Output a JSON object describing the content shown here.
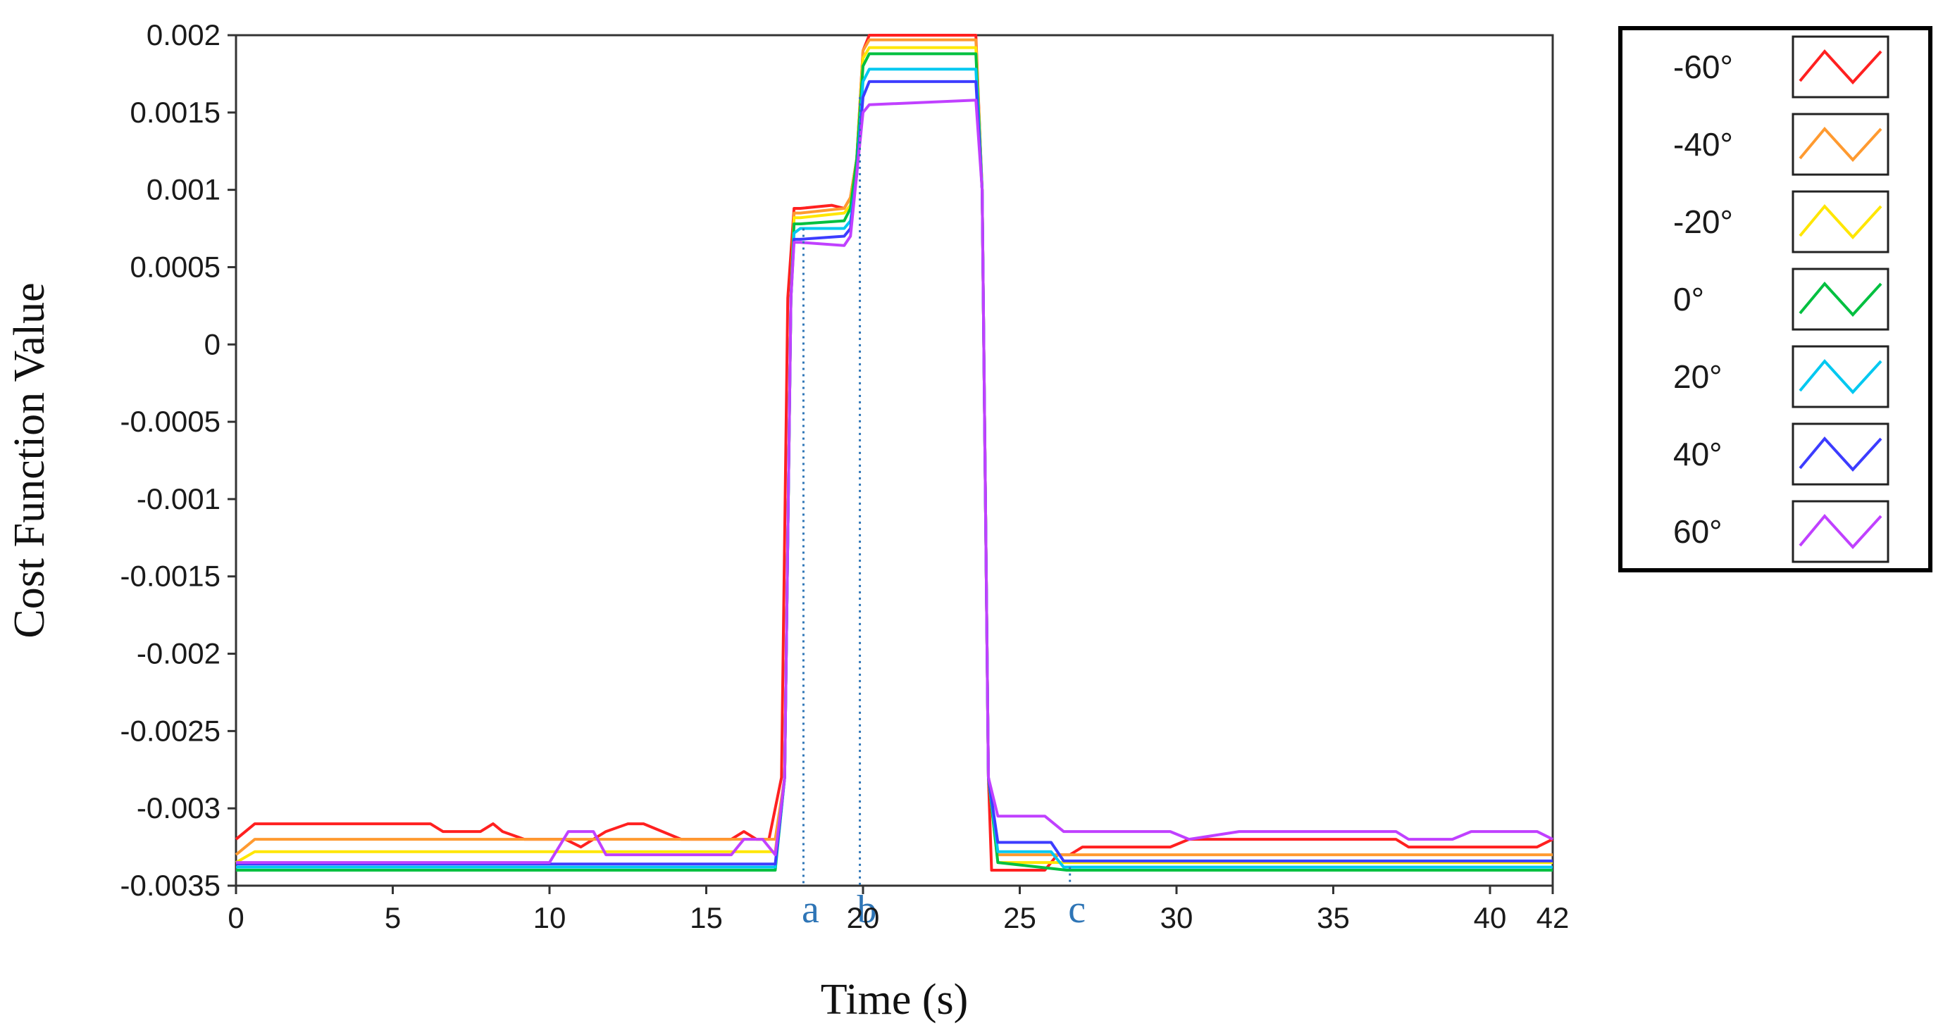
{
  "chart_data": {
    "type": "line",
    "title": "",
    "xlabel": "Time (s)",
    "ylabel": "Cost Function Value",
    "xlim": [
      0,
      42
    ],
    "ylim": [
      -0.0035,
      0.002
    ],
    "xticks": [
      0,
      5,
      10,
      15,
      20,
      25,
      30,
      35,
      40,
      42
    ],
    "xtick_labels": [
      "0",
      "5",
      "10",
      "15",
      "20",
      "25",
      "30",
      "35",
      "40",
      "42"
    ],
    "yticks": [
      0.002,
      0.0015,
      0.001,
      0.0005,
      0,
      -0.0005,
      -0.001,
      -0.0015,
      -0.002,
      -0.0025,
      -0.003,
      -0.0035
    ],
    "ytick_labels": [
      "0.002",
      "0.0015",
      "0.001",
      "0.0005",
      "0",
      "-0.0005",
      "-0.001",
      "-0.0015",
      "-0.002",
      "-0.0025",
      "-0.003",
      "-0.0035"
    ],
    "grid": false,
    "legend_position": "outside-right-top",
    "markers": [
      {
        "label": "a",
        "x": 18.1
      },
      {
        "label": "b",
        "x": 19.9
      },
      {
        "label": "c",
        "x": 26.6
      }
    ],
    "marker_color": "#2e75b6",
    "series": [
      {
        "name": "-60°",
        "color": "#ff2020",
        "x": [
          0,
          0.6,
          6.2,
          6.6,
          7.8,
          8.2,
          8.5,
          9.2,
          10.5,
          11.0,
          11.8,
          12.5,
          13.0,
          13.6,
          14.2,
          15.8,
          16.2,
          16.6,
          17.0,
          17.4,
          17.6,
          17.8,
          18.0,
          19.0,
          19.4,
          19.6,
          19.8,
          20.0,
          20.2,
          20.3,
          23.6,
          23.8,
          24.0,
          24.1,
          24.3,
          24.6,
          25.8,
          26.2,
          26.6,
          27.0,
          29.8,
          30.4,
          32.0,
          37.0,
          37.4,
          38.8,
          39.4,
          41.5,
          42
        ],
        "y": [
          -0.0032,
          -0.0031,
          -0.0031,
          -0.00315,
          -0.00315,
          -0.0031,
          -0.00315,
          -0.0032,
          -0.0032,
          -0.00325,
          -0.00315,
          -0.0031,
          -0.0031,
          -0.00315,
          -0.0032,
          -0.0032,
          -0.00315,
          -0.0032,
          -0.0032,
          -0.0028,
          0.0003,
          0.00088,
          0.00088,
          0.0009,
          0.00088,
          0.00095,
          0.0012,
          0.0019,
          0.002,
          0.002,
          0.002,
          0.001,
          -0.0028,
          -0.0034,
          -0.0034,
          -0.0034,
          -0.0034,
          -0.0033,
          -0.0033,
          -0.00325,
          -0.00325,
          -0.0032,
          -0.0032,
          -0.0032,
          -0.00325,
          -0.00325,
          -0.00325,
          -0.00325,
          -0.0032
        ]
      },
      {
        "name": "-40°",
        "color": "#ff9a30",
        "x": [
          0,
          0.6,
          17.2,
          17.5,
          17.7,
          17.8,
          18.0,
          19.4,
          19.6,
          19.8,
          20.0,
          20.2,
          23.6,
          23.8,
          24.0,
          24.3,
          24.6,
          42
        ],
        "y": [
          -0.0033,
          -0.0032,
          -0.0032,
          -0.0028,
          0.0003,
          0.00085,
          0.00085,
          0.00088,
          0.00095,
          0.0012,
          0.0019,
          0.00197,
          0.00197,
          0.001,
          -0.0028,
          -0.0033,
          -0.0033,
          -0.0033
        ]
      },
      {
        "name": "-20°",
        "color": "#ffe600",
        "x": [
          0,
          0.6,
          17.2,
          17.5,
          17.7,
          17.8,
          18.0,
          19.4,
          19.6,
          19.8,
          20.0,
          20.2,
          23.6,
          23.8,
          24.0,
          24.3,
          24.6,
          42
        ],
        "y": [
          -0.00335,
          -0.00328,
          -0.00328,
          -0.0028,
          0.0003,
          0.00082,
          0.00082,
          0.00085,
          0.0009,
          0.0012,
          0.00185,
          0.00192,
          0.00192,
          0.001,
          -0.0028,
          -0.00335,
          -0.00335,
          -0.00335
        ]
      },
      {
        "name": "0°",
        "color": "#00c040",
        "x": [
          0,
          17.2,
          17.5,
          17.7,
          17.8,
          18.0,
          19.4,
          19.6,
          19.8,
          20.0,
          20.2,
          23.6,
          23.8,
          24.0,
          24.3,
          26.5,
          42
        ],
        "y": [
          -0.0034,
          -0.0034,
          -0.0028,
          0.0003,
          0.00078,
          0.00078,
          0.0008,
          0.00088,
          0.0012,
          0.0018,
          0.00188,
          0.00188,
          0.001,
          -0.0028,
          -0.00335,
          -0.0034,
          -0.0034
        ]
      },
      {
        "name": "20°",
        "color": "#00c8f0",
        "x": [
          0,
          17.2,
          17.5,
          17.7,
          17.8,
          18.0,
          19.4,
          19.6,
          19.8,
          20.0,
          20.2,
          23.6,
          23.8,
          24.0,
          24.3,
          26.0,
          26.4,
          42
        ],
        "y": [
          -0.00338,
          -0.00338,
          -0.0028,
          0.0003,
          0.00072,
          0.00075,
          0.00075,
          0.0008,
          0.0011,
          0.0017,
          0.00178,
          0.00178,
          0.001,
          -0.0028,
          -0.00328,
          -0.00328,
          -0.00338,
          -0.00338
        ]
      },
      {
        "name": "40°",
        "color": "#3c3cff",
        "x": [
          0,
          17.2,
          17.5,
          17.7,
          17.8,
          18.0,
          19.4,
          19.6,
          19.8,
          20.0,
          20.2,
          23.6,
          23.8,
          24.0,
          24.3,
          26.0,
          26.4,
          42
        ],
        "y": [
          -0.00336,
          -0.00336,
          -0.0028,
          0.0003,
          0.00068,
          0.00068,
          0.0007,
          0.00075,
          0.0011,
          0.0016,
          0.0017,
          0.0017,
          0.001,
          -0.0028,
          -0.00322,
          -0.00322,
          -0.00334,
          -0.00334
        ]
      },
      {
        "name": "60°",
        "color": "#c040ff",
        "x": [
          0,
          10.0,
          10.6,
          11.4,
          11.8,
          15.8,
          16.2,
          16.8,
          17.2,
          17.5,
          17.7,
          17.8,
          18.0,
          19.4,
          19.6,
          19.8,
          20.0,
          20.2,
          23.6,
          23.8,
          24.0,
          24.3,
          25.8,
          26.4,
          29.8,
          30.4,
          32.0,
          37.0,
          37.4,
          38.8,
          39.4,
          41.5,
          42
        ],
        "y": [
          -0.00335,
          -0.00335,
          -0.00315,
          -0.00315,
          -0.0033,
          -0.0033,
          -0.0032,
          -0.0032,
          -0.0033,
          -0.0028,
          0.0003,
          0.00066,
          0.00066,
          0.00064,
          0.0007,
          0.0011,
          0.0015,
          0.00155,
          0.00158,
          0.001,
          -0.0028,
          -0.00305,
          -0.00305,
          -0.00315,
          -0.00315,
          -0.0032,
          -0.00315,
          -0.00315,
          -0.0032,
          -0.0032,
          -0.00315,
          -0.00315,
          -0.0032
        ]
      }
    ]
  }
}
